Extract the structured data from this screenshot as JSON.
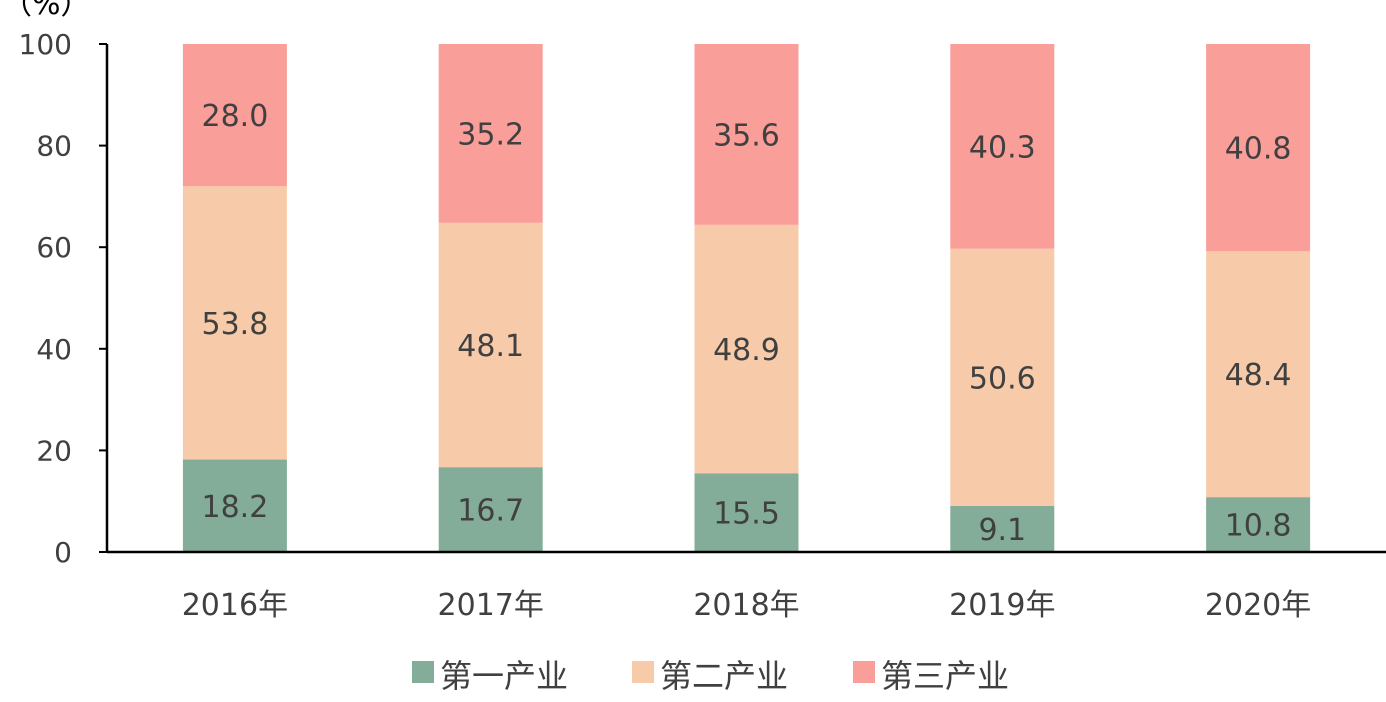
{
  "chart_data": {
    "type": "bar",
    "stacked": true,
    "unit_label": "（%）",
    "categories": [
      "2016年",
      "2017年",
      "2018年",
      "2019年",
      "2020年"
    ],
    "series": [
      {
        "name": "第一产业",
        "color": "#84ad99",
        "values": [
          18.2,
          16.7,
          15.5,
          9.1,
          10.8
        ]
      },
      {
        "name": "第二产业",
        "color": "#f7cbaa",
        "values": [
          53.8,
          48.1,
          48.9,
          50.6,
          48.4
        ]
      },
      {
        "name": "第三产业",
        "color": "#fa9e9a",
        "values": [
          28.0,
          35.2,
          35.6,
          40.3,
          40.8
        ]
      }
    ],
    "ylim": [
      0,
      100
    ],
    "yticks": [
      0,
      20,
      40,
      60,
      80,
      100
    ],
    "grid": false,
    "legend_position": "bottom"
  }
}
